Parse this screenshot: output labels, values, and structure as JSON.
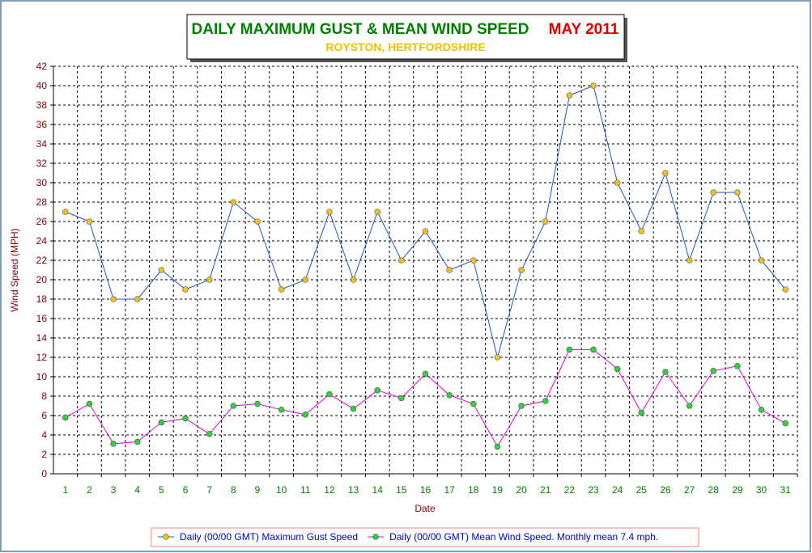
{
  "chart_data": {
    "type": "line",
    "title": "DAILY MAXIMUM GUST & MEAN WIND SPEED",
    "title_period": "MAY 2011",
    "subtitle": "ROYSTON, HERTFORDSHIRE",
    "x_label": "Date",
    "y_label": "Wind Speed (MPH)",
    "categories": [
      1,
      2,
      3,
      4,
      5,
      6,
      7,
      8,
      9,
      10,
      11,
      12,
      13,
      14,
      15,
      16,
      17,
      18,
      19,
      20,
      21,
      22,
      23,
      24,
      25,
      26,
      27,
      28,
      29,
      30,
      31
    ],
    "ylim": [
      0,
      42
    ],
    "yticks": [
      0,
      2,
      4,
      6,
      8,
      10,
      12,
      14,
      16,
      18,
      20,
      22,
      24,
      26,
      28,
      30,
      32,
      34,
      36,
      38,
      40,
      42
    ],
    "grid": true,
    "series": [
      {
        "name": "Daily (00/00 GMT) Maximum Gust Speed",
        "color": "#2050c8",
        "marker_color": "#f0c020",
        "values": [
          27,
          26,
          18,
          18,
          21,
          19,
          20,
          28,
          26,
          19,
          20,
          27,
          20,
          27,
          22,
          25,
          21,
          22,
          12,
          21,
          26,
          39,
          40,
          30,
          25,
          31,
          22,
          29,
          29,
          22,
          19
        ]
      },
      {
        "name": "Daily (00/00 GMT) Mean Wind Speed. Monthly mean 7.4 mph.",
        "color": "#e000e0",
        "marker_color": "#30d040",
        "values": [
          5.8,
          7.2,
          3.1,
          3.3,
          5.3,
          5.7,
          4.1,
          7.0,
          7.2,
          6.6,
          6.1,
          8.2,
          6.7,
          8.6,
          7.8,
          10.3,
          8.1,
          7.2,
          2.8,
          7.0,
          7.5,
          12.8,
          12.8,
          10.8,
          6.3,
          10.5,
          7.0,
          10.6,
          11.1,
          6.6,
          5.2
        ]
      }
    ]
  }
}
